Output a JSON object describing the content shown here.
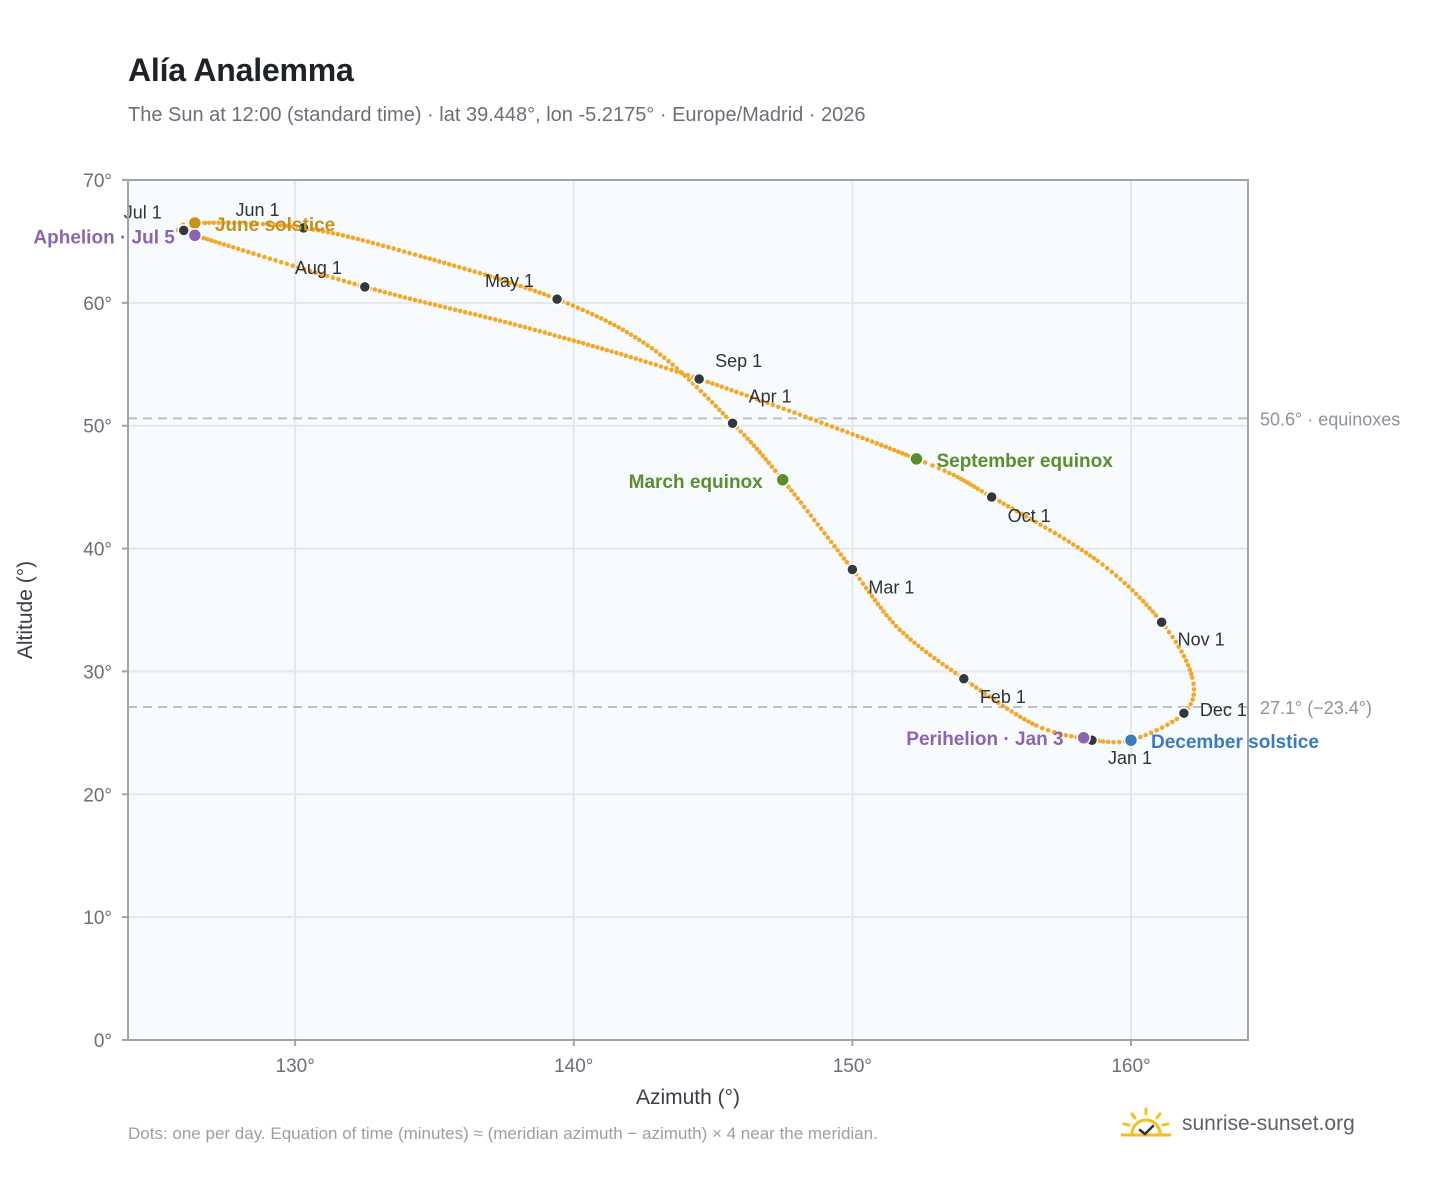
{
  "title": "Alía Analemma",
  "subtitle": "The Sun at 12:00 (standard time) · lat 39.448°, lon -5.2175° · Europe/Madrid · 2026",
  "footnote": "Dots: one per day. Equation of time (minutes) ≈ (meridian azimuth − azimuth) × 4 near the meridian.",
  "brand": {
    "text": "sunrise-sunset.org",
    "icon": "sun-check-icon"
  },
  "colors": {
    "curve": "#f2a92a",
    "month_dot": "#333840",
    "equinox": "#5a8f2e",
    "december_solstice": "#3a7bbf",
    "june_solstice": "#c9901a",
    "apsis": "#8b65b4",
    "reference_line": "#b8c2cb",
    "plot_bg": "#f8fbfe",
    "grid": "#e3e8ee",
    "frame": "#9aa5b2"
  },
  "chart_data": {
    "type": "scatter",
    "xlabel": "Azimuth (°)",
    "ylabel": "Altitude (°)",
    "xlim": [
      124,
      164.2
    ],
    "ylim": [
      0,
      70
    ],
    "x_ticks": [
      130,
      140,
      150,
      160
    ],
    "x_tick_labels": [
      "130°",
      "140°",
      "150°",
      "160°"
    ],
    "y_ticks": [
      0,
      10,
      20,
      30,
      40,
      50,
      60,
      70
    ],
    "y_tick_labels": [
      "0°",
      "10°",
      "20°",
      "30°",
      "40°",
      "50°",
      "60°",
      "70°"
    ],
    "grid": true,
    "series_points_per_day": true,
    "month_markers": [
      {
        "label": "Jan 1",
        "az": 158.6,
        "alt": 24.4
      },
      {
        "label": "Feb 1",
        "az": 154.0,
        "alt": 29.4
      },
      {
        "label": "Mar 1",
        "az": 150.0,
        "alt": 38.3
      },
      {
        "label": "Apr 1",
        "az": 145.7,
        "alt": 50.2
      },
      {
        "label": "May 1",
        "az": 139.4,
        "alt": 60.3
      },
      {
        "label": "Jun 1",
        "az": 130.3,
        "alt": 66.1
      },
      {
        "label": "Jul 1",
        "az": 126.0,
        "alt": 65.9
      },
      {
        "label": "Aug 1",
        "az": 132.5,
        "alt": 61.3
      },
      {
        "label": "Sep 1",
        "az": 144.5,
        "alt": 53.8
      },
      {
        "label": "Oct 1",
        "az": 155.0,
        "alt": 44.2
      },
      {
        "label": "Nov 1",
        "az": 161.1,
        "alt": 34.0
      },
      {
        "label": "Dec 1",
        "az": 161.9,
        "alt": 26.6
      }
    ],
    "events": [
      {
        "label": "March equinox",
        "az": 147.5,
        "alt": 45.6,
        "color_key": "equinox"
      },
      {
        "label": "September equinox",
        "az": 152.3,
        "alt": 47.3,
        "color_key": "equinox"
      },
      {
        "label": "June solstice",
        "az": 126.4,
        "alt": 66.5,
        "color_key": "june_solstice"
      },
      {
        "label": "December solstice",
        "az": 160.0,
        "alt": 24.4,
        "color_key": "december_solstice"
      },
      {
        "label": "Aphelion · Jul 5",
        "az": 126.4,
        "alt": 65.5,
        "color_key": "apsis"
      },
      {
        "label": "Perihelion · Jan 3",
        "az": 158.3,
        "alt": 24.6,
        "color_key": "apsis"
      }
    ],
    "reference_lines": [
      {
        "alt": 50.6,
        "label": "50.6° · equinoxes"
      },
      {
        "alt": 27.1,
        "label": "27.1° (−23.4°)"
      }
    ],
    "curve_path": [
      {
        "az": 158.6,
        "alt": 24.4
      },
      {
        "az": 156.6,
        "alt": 25.6
      },
      {
        "az": 154.0,
        "alt": 29.4
      },
      {
        "az": 151.7,
        "alt": 33.4
      },
      {
        "az": 150.0,
        "alt": 38.3
      },
      {
        "az": 147.5,
        "alt": 45.6
      },
      {
        "az": 145.7,
        "alt": 50.2
      },
      {
        "az": 142.8,
        "alt": 56.3
      },
      {
        "az": 139.4,
        "alt": 60.3
      },
      {
        "az": 134.5,
        "alt": 63.8
      },
      {
        "az": 130.3,
        "alt": 66.1
      },
      {
        "az": 126.4,
        "alt": 66.5
      },
      {
        "az": 126.0,
        "alt": 65.9
      },
      {
        "az": 126.4,
        "alt": 65.5
      },
      {
        "az": 132.5,
        "alt": 61.3
      },
      {
        "az": 138.6,
        "alt": 57.8
      },
      {
        "az": 144.5,
        "alt": 53.8
      },
      {
        "az": 152.3,
        "alt": 47.3
      },
      {
        "az": 155.0,
        "alt": 44.2
      },
      {
        "az": 158.8,
        "alt": 39.0
      },
      {
        "az": 161.1,
        "alt": 34.0
      },
      {
        "az": 162.2,
        "alt": 29.5
      },
      {
        "az": 161.9,
        "alt": 26.6
      },
      {
        "az": 160.0,
        "alt": 24.4
      },
      {
        "az": 158.6,
        "alt": 24.4
      }
    ]
  }
}
